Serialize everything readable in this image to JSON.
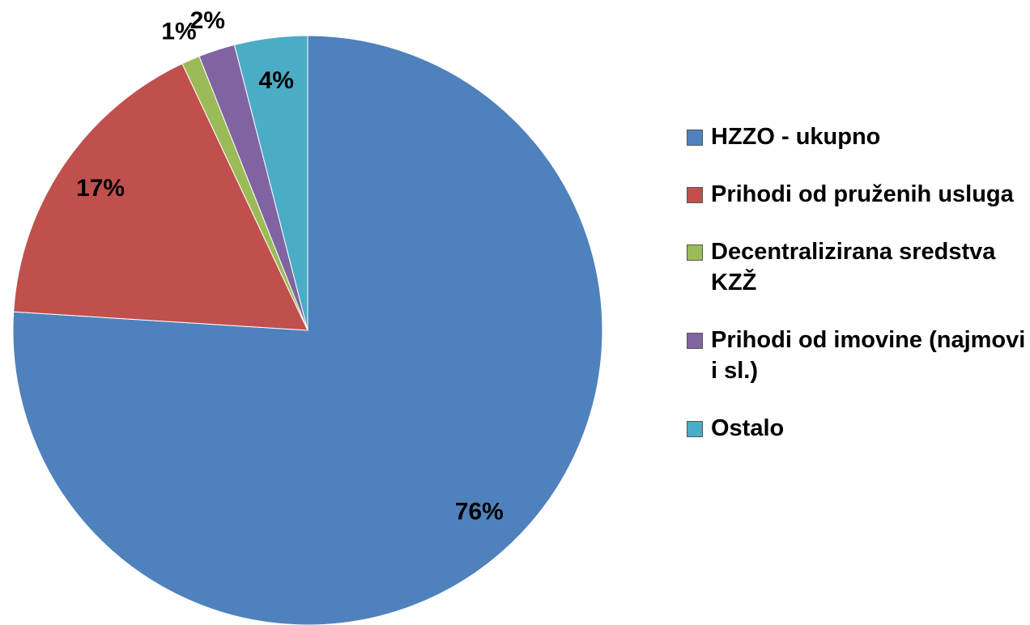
{
  "chart_data": {
    "type": "pie",
    "categories": [
      "HZZO - ukupno",
      "Prihodi od pruženih usluga",
      "Decentralizirana sredstva KZŽ",
      "Prihodi od imovine (najmovi i sl.)",
      "Ostalo"
    ],
    "values": [
      76,
      17,
      1,
      2,
      4
    ],
    "value_labels": [
      "76%",
      "17%",
      "1%",
      "2%",
      "4%"
    ],
    "colors": [
      "#4f81bd",
      "#c0504d",
      "#9bbb59",
      "#8064a2",
      "#4bacc6"
    ],
    "legend": "right"
  }
}
